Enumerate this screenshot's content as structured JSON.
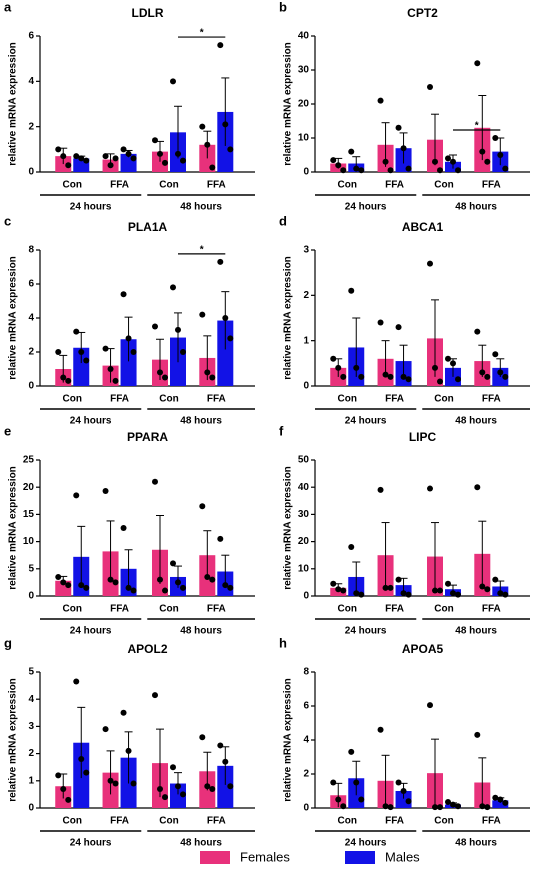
{
  "legend": [
    {
      "name": "Females",
      "color": "#e8317b"
    },
    {
      "name": "Males",
      "color": "#1212e6"
    }
  ],
  "chart_data": [
    {
      "type": "bar",
      "panel": "a",
      "title": "LDLR",
      "ylabel": "relative mRNA expression",
      "categories": [
        "Con",
        "FFA",
        "Con",
        "FFA"
      ],
      "groups": [
        "24 hours",
        "48 hours"
      ],
      "ylim": [
        0,
        6
      ],
      "yticks": [
        0,
        2,
        4,
        6
      ],
      "annotation": "*",
      "series": [
        {
          "values": [
            0.7,
            0.55,
            0.9,
            1.2
          ],
          "errors": [
            0.35,
            0.25,
            0.45,
            0.6
          ],
          "points": [
            [
              1.0,
              0.7,
              0.3
            ],
            [
              0.7,
              0.3,
              0.6
            ],
            [
              1.4,
              0.8,
              0.4
            ],
            [
              2.0,
              1.2,
              0.2
            ]
          ]
        },
        {
          "values": [
            0.6,
            0.8,
            1.75,
            2.65
          ],
          "errors": [
            0.1,
            0.15,
            1.15,
            1.5
          ],
          "points": [
            [
              0.7,
              0.6,
              0.5
            ],
            [
              1.0,
              0.8,
              0.6
            ],
            [
              4.0,
              0.8,
              0.5
            ],
            [
              5.6,
              2.1,
              1.0
            ]
          ]
        }
      ]
    },
    {
      "type": "bar",
      "panel": "b",
      "title": "CPT2",
      "ylabel": "relative mRNA expression",
      "categories": [
        "Con",
        "FFA",
        "Con",
        "FFA"
      ],
      "groups": [
        "24 hours",
        "48 hours"
      ],
      "ylim": [
        0,
        40
      ],
      "yticks": [
        0,
        10,
        20,
        30,
        40
      ],
      "annotation": "*",
      "series": [
        {
          "values": [
            2.5,
            8,
            9.5,
            13
          ],
          "errors": [
            1.5,
            6.5,
            7.5,
            9.5
          ],
          "points": [
            [
              3.5,
              2,
              0.5
            ],
            [
              21,
              3,
              0.5
            ],
            [
              25,
              3,
              0.5
            ],
            [
              32,
              6,
              3
            ]
          ]
        },
        {
          "values": [
            2.5,
            7,
            3,
            6
          ],
          "errors": [
            2,
            4.5,
            2,
            4
          ],
          "points": [
            [
              6,
              1,
              0.5
            ],
            [
              13,
              7,
              1
            ],
            [
              4,
              3,
              0.5
            ],
            [
              10,
              5,
              1
            ]
          ]
        }
      ]
    },
    {
      "type": "bar",
      "panel": "c",
      "title": "PLA1A",
      "ylabel": "relative mRNA expression",
      "categories": [
        "Con",
        "FFA",
        "Con",
        "FFA"
      ],
      "groups": [
        "24 hours",
        "48 hours"
      ],
      "ylim": [
        0,
        8
      ],
      "yticks": [
        0,
        2,
        4,
        6,
        8
      ],
      "annotation": "*",
      "series": [
        {
          "values": [
            1.0,
            1.2,
            1.55,
            1.65
          ],
          "errors": [
            0.8,
            1.0,
            1.2,
            1.3
          ],
          "points": [
            [
              2.0,
              0.5,
              0.3
            ],
            [
              2.2,
              1.0,
              0.3
            ],
            [
              3.5,
              0.8,
              0.5
            ],
            [
              4.2,
              0.8,
              0.5
            ]
          ]
        },
        {
          "values": [
            2.25,
            2.75,
            2.85,
            3.85
          ],
          "errors": [
            0.9,
            1.3,
            1.45,
            1.7
          ],
          "points": [
            [
              3.2,
              2.0,
              1.5
            ],
            [
              5.4,
              2.8,
              2.0
            ],
            [
              5.8,
              3.3,
              2.0
            ],
            [
              7.3,
              4.0,
              2.8
            ]
          ]
        }
      ]
    },
    {
      "type": "bar",
      "panel": "d",
      "title": "ABCA1",
      "ylabel": "relative mRNA expression",
      "categories": [
        "Con",
        "FFA",
        "Con",
        "FFA"
      ],
      "groups": [
        "24 hours",
        "48 hours"
      ],
      "ylim": [
        0,
        3
      ],
      "yticks": [
        0,
        1,
        2,
        3
      ],
      "series": [
        {
          "values": [
            0.4,
            0.6,
            1.05,
            0.55
          ],
          "errors": [
            0.2,
            0.4,
            0.85,
            0.35
          ],
          "points": [
            [
              0.6,
              0.4,
              0.2
            ],
            [
              1.4,
              0.25,
              0.2
            ],
            [
              2.7,
              0.4,
              0.1
            ],
            [
              1.2,
              0.3,
              0.2
            ]
          ]
        },
        {
          "values": [
            0.85,
            0.55,
            0.4,
            0.4
          ],
          "errors": [
            0.65,
            0.35,
            0.2,
            0.2
          ],
          "points": [
            [
              2.1,
              0.4,
              0.2
            ],
            [
              1.3,
              0.2,
              0.15
            ],
            [
              0.6,
              0.5,
              0.15
            ],
            [
              0.7,
              0.3,
              0.2
            ]
          ]
        }
      ]
    },
    {
      "type": "bar",
      "panel": "e",
      "title": "PPARA",
      "ylabel": "relative mRNA expression",
      "categories": [
        "Con",
        "FFA",
        "Con",
        "FFA"
      ],
      "groups": [
        "24 hours",
        "48 hours"
      ],
      "ylim": [
        0,
        25
      ],
      "yticks": [
        0,
        5,
        10,
        15,
        20,
        25
      ],
      "series": [
        {
          "values": [
            2.8,
            8.2,
            8.5,
            7.5
          ],
          "errors": [
            0.8,
            5.6,
            6.3,
            4.5
          ],
          "points": [
            [
              3.5,
              2.5,
              2
            ],
            [
              19.3,
              3,
              2.5
            ],
            [
              21,
              3,
              1
            ],
            [
              16.5,
              3.5,
              3
            ]
          ]
        },
        {
          "values": [
            7.2,
            5.0,
            3.5,
            4.5
          ],
          "errors": [
            5.6,
            3.5,
            2,
            3
          ],
          "points": [
            [
              18.5,
              2,
              1.5
            ],
            [
              12.5,
              1.5,
              1
            ],
            [
              6,
              2.5,
              1.5
            ],
            [
              10.5,
              2,
              1.5
            ]
          ]
        }
      ]
    },
    {
      "type": "bar",
      "panel": "f",
      "title": "LIPC",
      "ylabel": "relative mRNA expression",
      "categories": [
        "Con",
        "FFA",
        "Con",
        "FFA"
      ],
      "groups": [
        "24 hours",
        "48 hours"
      ],
      "ylim": [
        0,
        50
      ],
      "yticks": [
        0,
        10,
        20,
        30,
        40,
        50
      ],
      "series": [
        {
          "values": [
            3,
            15,
            14.5,
            15.5
          ],
          "errors": [
            1.5,
            12,
            12.5,
            12
          ],
          "points": [
            [
              4.5,
              2.5,
              2
            ],
            [
              39,
              3,
              3
            ],
            [
              39.5,
              2,
              2
            ],
            [
              40,
              3.5,
              2.5
            ]
          ]
        },
        {
          "values": [
            7,
            4,
            2.5,
            3.5
          ],
          "errors": [
            5.5,
            2.5,
            1.5,
            2
          ],
          "points": [
            [
              18,
              1,
              0.5
            ],
            [
              6,
              1,
              0.5
            ],
            [
              4.5,
              1,
              0.5
            ],
            [
              6,
              1,
              0.5
            ]
          ]
        }
      ]
    },
    {
      "type": "bar",
      "panel": "g",
      "title": "APOL2",
      "ylabel": "relative mRNA expression",
      "categories": [
        "Con",
        "FFA",
        "Con",
        "FFA"
      ],
      "groups": [
        "24 hours",
        "48 hours"
      ],
      "ylim": [
        0,
        5
      ],
      "yticks": [
        0,
        1,
        2,
        3,
        4,
        5
      ],
      "series": [
        {
          "values": [
            0.8,
            1.3,
            1.65,
            1.35
          ],
          "errors": [
            0.45,
            0.8,
            1.25,
            0.7
          ],
          "points": [
            [
              1.2,
              0.7,
              0.3
            ],
            [
              2.9,
              1.0,
              0.9
            ],
            [
              4.15,
              0.7,
              0.4
            ],
            [
              2.6,
              0.8,
              0.7
            ]
          ]
        },
        {
          "values": [
            2.4,
            1.85,
            0.9,
            1.55
          ],
          "errors": [
            1.3,
            0.95,
            0.4,
            0.7
          ],
          "points": [
            [
              4.65,
              1.8,
              1.3
            ],
            [
              3.5,
              2.1,
              0.9
            ],
            [
              1.5,
              0.8,
              0.5
            ],
            [
              2.3,
              1.7,
              0.8
            ]
          ]
        }
      ]
    },
    {
      "type": "bar",
      "panel": "h",
      "title": "APOA5",
      "ylabel": "relative mRNA expression",
      "categories": [
        "Con",
        "FFA",
        "Con",
        "FFA"
      ],
      "groups": [
        "24 hours",
        "48 hours"
      ],
      "ylim": [
        0,
        8
      ],
      "yticks": [
        0,
        2,
        4,
        6,
        8
      ],
      "series": [
        {
          "values": [
            0.75,
            1.6,
            2.05,
            1.5
          ],
          "errors": [
            0.7,
            1.5,
            2.0,
            1.45
          ],
          "points": [
            [
              1.5,
              0.5,
              0.1
            ],
            [
              4.6,
              0.1,
              0.05
            ],
            [
              6.05,
              0.05,
              0.05
            ],
            [
              4.3,
              0.1,
              0.05
            ]
          ]
        },
        {
          "values": [
            1.75,
            1.0,
            0.2,
            0.45
          ],
          "errors": [
            1.0,
            0.45,
            0.1,
            0.15
          ],
          "points": [
            [
              3.3,
              1.5,
              0.5
            ],
            [
              1.5,
              1,
              0.4
            ],
            [
              0.35,
              0.2,
              0.1
            ],
            [
              0.6,
              0.5,
              0.3
            ]
          ]
        }
      ]
    }
  ]
}
